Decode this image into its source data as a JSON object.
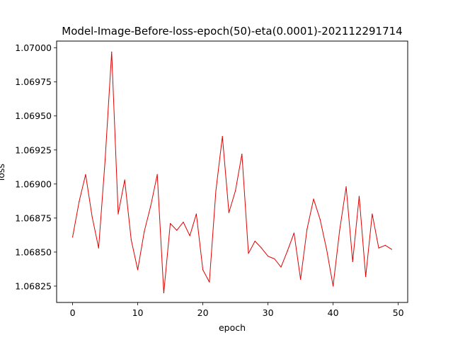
{
  "chart_data": {
    "type": "line",
    "title": "Model-Image-Before-loss-epoch(50)-eta(0.0001)-202112291714",
    "xlabel": "epoch",
    "ylabel": "loss",
    "xlim": [
      -2.45,
      51.45
    ],
    "ylim": [
      1.06813,
      1.07005
    ],
    "xticks": [
      0,
      10,
      20,
      30,
      40,
      50
    ],
    "yticks": [
      1.06825,
      1.0685,
      1.06875,
      1.069,
      1.06925,
      1.0695,
      1.06975,
      1.07
    ],
    "ytick_labels": [
      "1.06825",
      "1.06850",
      "1.06875",
      "1.06900",
      "1.06925",
      "1.06950",
      "1.06975",
      "1.07000"
    ],
    "grid": false,
    "series": [
      {
        "color": "#e00000",
        "x": [
          0,
          1,
          2,
          3,
          4,
          5,
          6,
          7,
          8,
          9,
          10,
          11,
          12,
          13,
          14,
          15,
          16,
          17,
          18,
          19,
          20,
          21,
          22,
          23,
          24,
          25,
          26,
          27,
          28,
          29,
          30,
          31,
          32,
          33,
          34,
          35,
          36,
          37,
          38,
          39,
          40,
          41,
          42,
          43,
          44,
          45,
          46,
          47,
          48,
          49
        ],
        "values": [
          1.06861,
          1.06887,
          1.06907,
          1.06876,
          1.06853,
          1.06918,
          1.06997,
          1.06878,
          1.06903,
          1.06859,
          1.06837,
          1.06865,
          1.06884,
          1.06907,
          1.0682,
          1.06871,
          1.06866,
          1.06872,
          1.06862,
          1.06878,
          1.06837,
          1.06828,
          1.06895,
          1.06935,
          1.06879,
          1.06895,
          1.06922,
          1.06849,
          1.06858,
          1.06853,
          1.06847,
          1.06845,
          1.06839,
          1.06851,
          1.06864,
          1.0683,
          1.06867,
          1.06889,
          1.06874,
          1.06852,
          1.06825,
          1.06866,
          1.06898,
          1.06843,
          1.06891,
          1.06832,
          1.06878,
          1.06853,
          1.06855,
          1.06852
        ]
      }
    ]
  }
}
